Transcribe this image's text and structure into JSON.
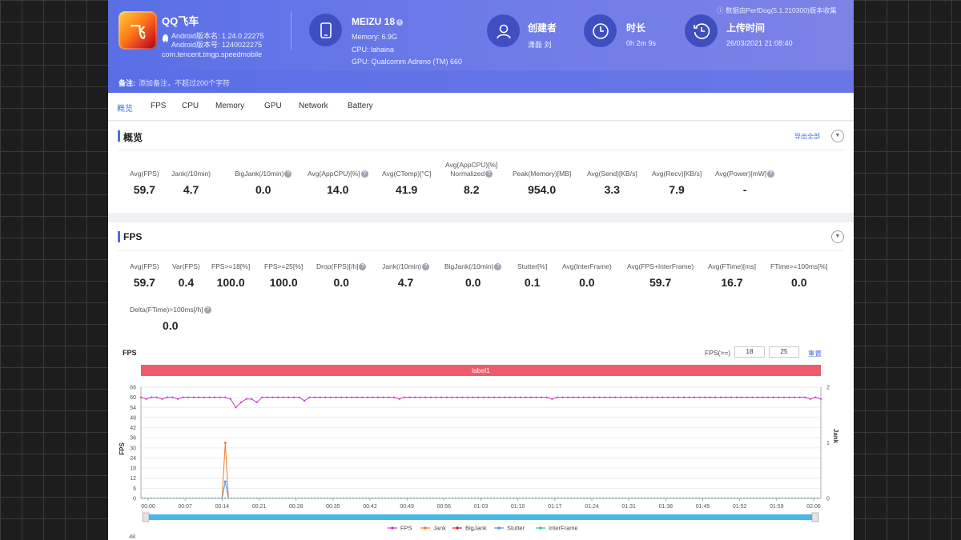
{
  "header": {
    "app": {
      "name": "QQ飞车",
      "version_name": "Android版本名: 1.24.0.22275",
      "version_code": "Android版本号: 1240022275",
      "package": "com.tencent.tmgp.speedmobile",
      "icon": "game-icon"
    },
    "device": {
      "name": "MEIZU 18",
      "memory": "Memory: 6.9G",
      "cpu": "CPU: lahaina",
      "gpu": "GPU: Qualcomm Adreno (TM) 660"
    },
    "creator": {
      "title": "创建者",
      "value": "潇磊 刘"
    },
    "duration": {
      "title": "时长",
      "value": "0h 2m 9s"
    },
    "upload": {
      "title": "上传时间",
      "value": "26/03/2021 21:08:40"
    },
    "source_note": "数据由PerfDog(5.1.210300)版本收集",
    "note_label": "备注:",
    "note_placeholder": "添加备注，不超过200个字符"
  },
  "tabs": [
    "概览",
    "FPS",
    "CPU",
    "Memory",
    "GPU",
    "Network",
    "Battery"
  ],
  "overview": {
    "title": "概览",
    "export_label": "导出全部",
    "stats": [
      {
        "label": "Avg(FPS)",
        "value": "59.7"
      },
      {
        "label": "Jank(/10min)",
        "value": "4.7"
      },
      {
        "label": "BigJank(/10min)",
        "value": "0.0"
      },
      {
        "label": "Avg(AppCPU)[%]",
        "value": "14.0"
      },
      {
        "label": "Avg(CTemp)[°C]",
        "value": "41.9"
      },
      {
        "label": "Avg(AppCPU)[%]",
        "label2": "Normalized",
        "value": "8.2"
      },
      {
        "label": "Peak(Memory)[MB]",
        "value": "954.0"
      },
      {
        "label": "Avg(Send)[KB/s]",
        "value": "3.3"
      },
      {
        "label": "Avg(Recv)[KB/s]",
        "value": "7.9"
      },
      {
        "label": "Avg(Power)[mW]",
        "value": "-"
      }
    ]
  },
  "fps_section": {
    "title": "FPS",
    "stats": [
      {
        "label": "Avg(FPS)",
        "value": "59.7"
      },
      {
        "label": "Var(FPS)",
        "value": "0.4"
      },
      {
        "label": "FPS>=18[%]",
        "value": "100.0"
      },
      {
        "label": "FPS>=25[%]",
        "value": "100.0"
      },
      {
        "label": "Drop(FPS)[/h]",
        "value": "0.0"
      },
      {
        "label": "Jank(/10min)",
        "value": "4.7"
      },
      {
        "label": "BigJank(/10min)",
        "value": "0.0"
      },
      {
        "label": "Stutter[%]",
        "value": "0.1"
      },
      {
        "label": "Avg(InterFrame)",
        "value": "0.0"
      },
      {
        "label": "Avg(FPS+InterFrame)",
        "value": "59.7"
      },
      {
        "label": "Avg(FTime)[ms]",
        "value": "16.7"
      },
      {
        "label": "FTime>=100ms[%]",
        "value": "0.0"
      },
      {
        "label": "Delta(FTime)>100ms[/h]",
        "value": "0.0"
      }
    ],
    "chart_title": "FPS",
    "fps_threshold_label": "FPS(>=)",
    "fps_threshold_1": "18",
    "fps_threshold_2": "25",
    "reset_label": "重置",
    "label_band": "label1"
  },
  "chart_data": {
    "type": "line",
    "ylabel": "FPS",
    "y2label": "Jank",
    "ylim": [
      0,
      66
    ],
    "y2lim": [
      0,
      2
    ],
    "yticks": [
      0,
      6,
      12,
      18,
      24,
      30,
      36,
      42,
      48,
      54,
      60,
      66
    ],
    "y2ticks": [
      0,
      1,
      2
    ],
    "xticks": [
      "00:00",
      "00:07",
      "00:14",
      "00:21",
      "00:28",
      "00:35",
      "00:42",
      "00:49",
      "00:56",
      "01:03",
      "01:10",
      "01:17",
      "01:24",
      "01:31",
      "01:38",
      "01:45",
      "01:52",
      "01:59",
      "02:06"
    ],
    "x_range_seconds": [
      0,
      129
    ],
    "series": [
      {
        "name": "FPS",
        "color": "#c23fbf",
        "axis": "left",
        "values": [
          60,
          59,
          60,
          60,
          59,
          60,
          60,
          59,
          60,
          60,
          60,
          60,
          60,
          60,
          60,
          60,
          60,
          59,
          54,
          57,
          59,
          59,
          57,
          60,
          60,
          60,
          60,
          60,
          60,
          60,
          60,
          58,
          60,
          60,
          60,
          60,
          60,
          60,
          60,
          60,
          60,
          60,
          60,
          60,
          60,
          60,
          60,
          60,
          60,
          59,
          60,
          60,
          60,
          60,
          60,
          60,
          60,
          60,
          60,
          60,
          60,
          60,
          60,
          60,
          60,
          60,
          60,
          60,
          60,
          60,
          60,
          60,
          60,
          60,
          60,
          60,
          60,
          60,
          59,
          60,
          60,
          60,
          60,
          60,
          60,
          60,
          60,
          60,
          60,
          60,
          60,
          60,
          60,
          60,
          60,
          60,
          60,
          60,
          60,
          60,
          60,
          60,
          60,
          60,
          60,
          60,
          60,
          60,
          60,
          60,
          60,
          60,
          60,
          60,
          60,
          60,
          60,
          60,
          60,
          60,
          60,
          60,
          60,
          60,
          60,
          60,
          60,
          59,
          60,
          59
        ]
      },
      {
        "name": "Jank",
        "color": "#f07d2a",
        "axis": "right",
        "spikes": [
          {
            "t": 16,
            "v": 1
          }
        ]
      },
      {
        "name": "BigJank",
        "color": "#e02020",
        "axis": "right",
        "spikes": []
      },
      {
        "name": "Stutter",
        "color": "#5b8ee6",
        "axis": "left",
        "spikes": [
          {
            "t": 16,
            "v": 10
          }
        ]
      },
      {
        "name": "InterFrame",
        "color": "#2ec4a0",
        "axis": "left",
        "spikes": []
      }
    ],
    "next_chart_ytick": "48"
  }
}
